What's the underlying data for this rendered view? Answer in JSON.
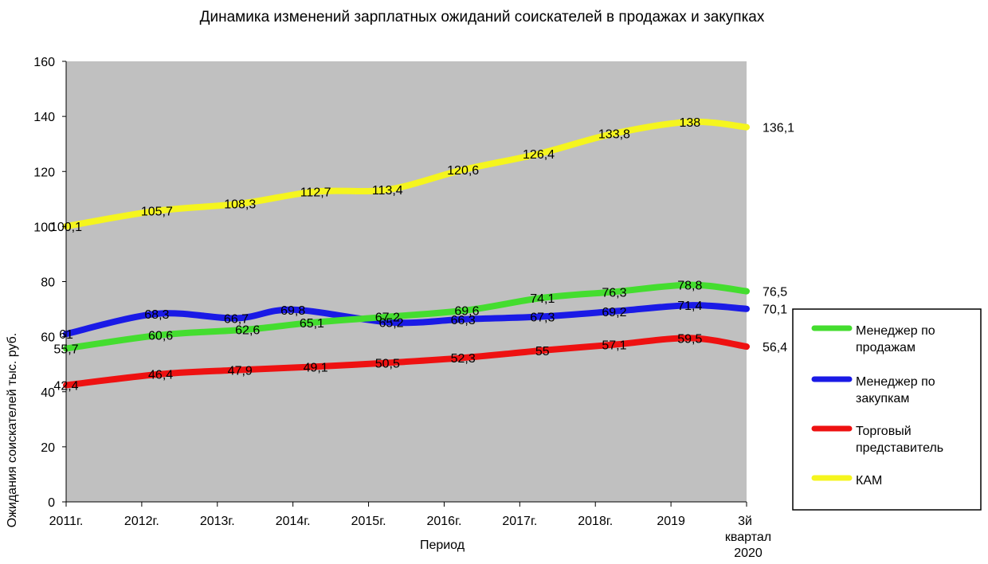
{
  "chart_data": {
    "type": "line",
    "title": "Динамика изменений зарплатных ожиданий соискателей в продажах и закупках",
    "xlabel": "Период",
    "ylabel": "Ожидания соискателей тыс. руб.",
    "categories": [
      "2011г.",
      "2012г.",
      "2013г.",
      "2014г.",
      "2015г.",
      "2016г.",
      "2017г.",
      "2018г.",
      "2019",
      "3й квартал 2020"
    ],
    "ylim": [
      0,
      160
    ],
    "yticks": [
      0,
      20,
      40,
      60,
      80,
      100,
      120,
      140,
      160
    ],
    "grid": false,
    "legend_position": "right",
    "plot_background": "#c0c0c0",
    "series": [
      {
        "name": "Менеджер по продажам",
        "color": "#44dd2f",
        "x": [
          0,
          1.25,
          2.4,
          3.25,
          4.25,
          5.3,
          6.3,
          7.25,
          8.25,
          9
        ],
        "values": [
          55.7,
          60.6,
          62.6,
          65.1,
          67.2,
          69.6,
          74.1,
          76.3,
          78.8,
          76.5
        ],
        "labels": [
          "55,7",
          "60,6",
          "62,6",
          "65,1",
          "67,2",
          "69,6",
          "74,1",
          "76,3",
          "78,8",
          "76,5"
        ]
      },
      {
        "name": "Менеджер по закупкам",
        "color": "#1a1ae6",
        "x": [
          0,
          1.2,
          2.25,
          3.0,
          4.3,
          5.25,
          6.3,
          7.25,
          8.25,
          9
        ],
        "values": [
          61,
          68.3,
          66.7,
          69.8,
          65.2,
          66.3,
          67.3,
          69.2,
          71.4,
          70.1
        ],
        "labels": [
          "61",
          "68,3",
          "66,7",
          "69,8",
          "65,2",
          "66,3",
          "67,3",
          "69,2",
          "71,4",
          "70,1"
        ]
      },
      {
        "name": "Торговый представитель",
        "color": "#ee1111",
        "x": [
          0,
          1.25,
          2.3,
          3.3,
          4.25,
          5.25,
          6.3,
          7.25,
          8.25,
          9
        ],
        "values": [
          42.4,
          46.4,
          47.9,
          49.1,
          50.5,
          52.3,
          55,
          57.1,
          59.5,
          56.4
        ],
        "labels": [
          "42,4",
          "46,4",
          "47,9",
          "49,1",
          "50,5",
          "52,3",
          "55",
          "57,1",
          "59,5",
          "56,4"
        ]
      },
      {
        "name": "КАМ",
        "color": "#f5f51e",
        "x": [
          0,
          1.2,
          2.3,
          3.3,
          4.25,
          5.25,
          6.25,
          7.25,
          8.25,
          9
        ],
        "values": [
          100.1,
          105.7,
          108.3,
          112.7,
          113.4,
          120.6,
          126.4,
          133.8,
          138,
          136.1
        ],
        "labels": [
          "100,1",
          "105,7",
          "108,3",
          "112,7",
          "113,4",
          "120,6",
          "126,4",
          "133,8",
          "138",
          "136,1"
        ]
      }
    ]
  }
}
